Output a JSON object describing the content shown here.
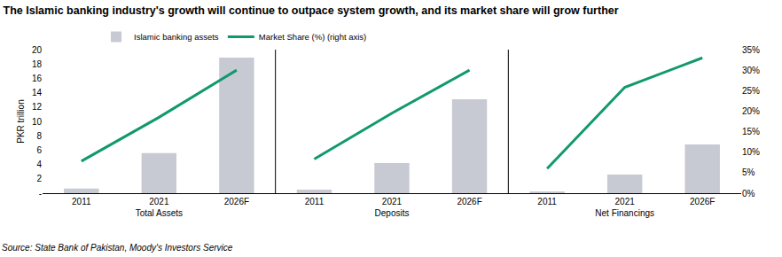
{
  "chart_data": {
    "type": "bar",
    "title": "The Islamic banking industry's growth will continue to outpace system growth, and its market share will grow further",
    "source": "Source: State Bank of Pakistan, Moody's Investors Service",
    "ylabel": "PKR trillion",
    "ylim": [
      0,
      20
    ],
    "yticks": [
      {
        "value": 0,
        "label": "-"
      },
      2,
      4,
      6,
      8,
      10,
      12,
      14,
      16,
      18,
      20
    ],
    "y2lim": [
      0,
      35
    ],
    "y2ticks": [
      {
        "value": 0,
        "label": "0%"
      },
      {
        "value": 5,
        "label": "5%"
      },
      {
        "value": 10,
        "label": "10%"
      },
      {
        "value": 15,
        "label": "15%"
      },
      {
        "value": 20,
        "label": "20%"
      },
      {
        "value": 25,
        "label": "25%"
      },
      {
        "value": 30,
        "label": "30%"
      },
      {
        "value": 35,
        "label": "35%"
      }
    ],
    "grid": false,
    "legend": "top",
    "panels": [
      {
        "title": "Total Assets",
        "categories": [
          "2011",
          "2021",
          "2026F"
        ],
        "series": [
          {
            "name": "Islamic banking assets",
            "type": "bar",
            "color": "#c7cad3",
            "values": [
              0.64,
              5.6,
              18.9
            ]
          },
          {
            "name": "Market Share (%) (right axis)",
            "type": "line",
            "axis": "y2",
            "color": "#11996e",
            "values": [
              7.8,
              18.5,
              30
            ]
          }
        ]
      },
      {
        "title": "Deposits",
        "categories": [
          "2011",
          "2021",
          "2026F"
        ],
        "series": [
          {
            "name": "Islamic banking assets",
            "type": "bar",
            "color": "#c7cad3",
            "values": [
              0.5,
              4.2,
              13.1
            ]
          },
          {
            "name": "Market Share (%) (right axis)",
            "type": "line",
            "axis": "y2",
            "color": "#11996e",
            "values": [
              8.3,
              19.5,
              30
            ]
          }
        ]
      },
      {
        "title": "Net Financings",
        "categories": [
          "2011",
          "2021",
          "2026F"
        ],
        "series": [
          {
            "name": "Islamic banking assets",
            "type": "bar",
            "color": "#c7cad3",
            "values": [
              0.15,
              2.6,
              6.8
            ]
          },
          {
            "name": "Market Share (%) (right axis)",
            "type": "line",
            "axis": "y2",
            "color": "#11996e",
            "values": [
              6,
              25.8,
              33
            ]
          }
        ]
      }
    ]
  }
}
